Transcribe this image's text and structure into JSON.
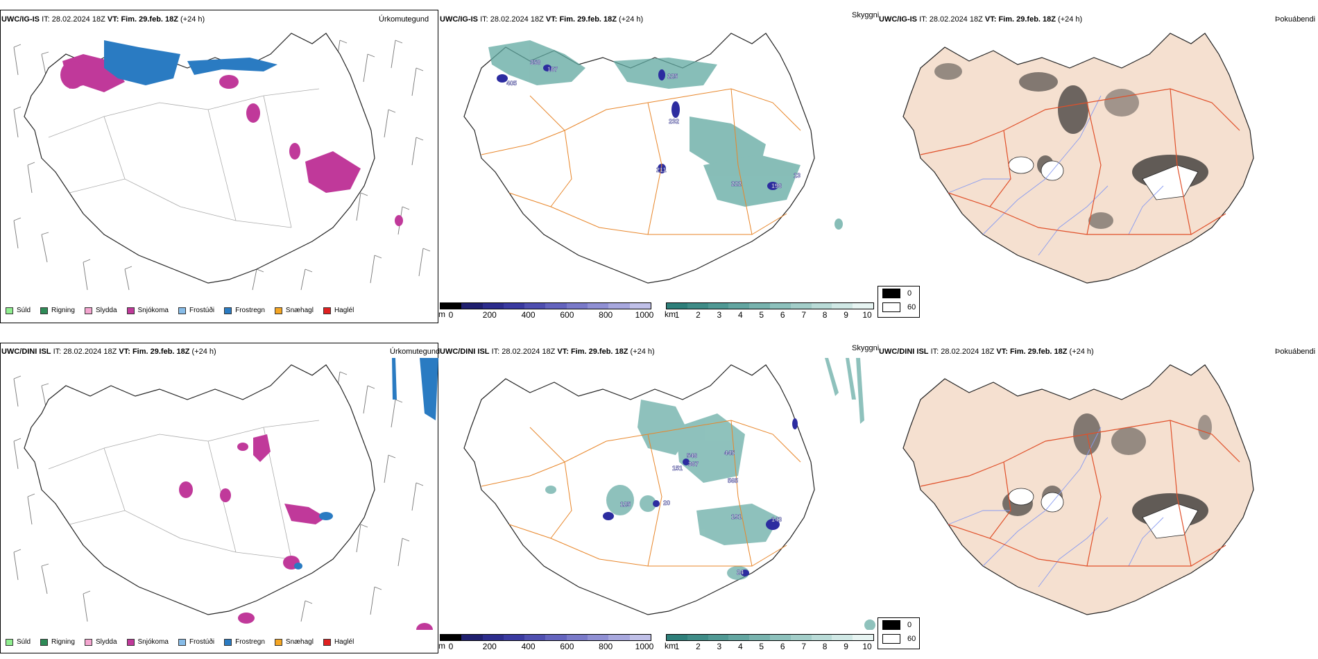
{
  "rows": [
    {
      "id": "top",
      "header": {
        "model": "UWC/IG-IS",
        "it_label": "IT:",
        "it_value": "28.02.2024 18Z",
        "vt_label": "VT:",
        "vt_value": "Fim. 29.feb. 18Z",
        "lead": "(+24 h)"
      },
      "titles": {
        "precip": "Úrkomutegund",
        "cloud": "Skyggni",
        "fog": "Þokuábendi"
      },
      "labels": [
        "358",
        "167",
        "405",
        "225",
        "232",
        "211",
        "222",
        "196",
        "13"
      ]
    },
    {
      "id": "bottom",
      "header": {
        "model": "UWC/DINI ISL",
        "it_label": "IT:",
        "it_value": "28.02.2024 18Z",
        "vt_label": "VT:",
        "vt_value": "Fim. 29.feb. 18Z",
        "lead": "(+24 h)"
      },
      "titles": {
        "precip": "Úrkomutegund",
        "cloud": "Skyggni",
        "fog": "Þokuábendi"
      },
      "labels": [
        "546",
        "367",
        "151",
        "445",
        "565",
        "125",
        "20",
        "191",
        "143",
        "24"
      ]
    }
  ],
  "precip_legend": [
    {
      "label": "Súld",
      "color": "#90ee90"
    },
    {
      "label": "Rigning",
      "color": "#2e8b57"
    },
    {
      "label": "Slydda",
      "color": "#f4a6d0"
    },
    {
      "label": "Snjókoma",
      "color": "#c0399a"
    },
    {
      "label": "Frostúði",
      "color": "#87bce8"
    },
    {
      "label": "Frostregn",
      "color": "#2a7bc2"
    },
    {
      "label": "Snæhagl",
      "color": "#f5a623"
    },
    {
      "label": "Haglél",
      "color": "#e02020"
    }
  ],
  "base_colorbar": {
    "unit": "m",
    "ticks": [
      "0",
      "200",
      "400",
      "600",
      "800",
      "1000"
    ],
    "colors": [
      "#000000",
      "#1f1f6e",
      "#2c2c8c",
      "#3a3aa0",
      "#4f4fb0",
      "#6464be",
      "#7a7ac9",
      "#9090d4",
      "#a8a8de",
      "#c0c0e8"
    ]
  },
  "vis_colorbar": {
    "unit": "km",
    "ticks": [
      "1",
      "2",
      "3",
      "4",
      "5",
      "6",
      "7",
      "8",
      "9",
      "10"
    ],
    "colors": [
      "#2e7f7a",
      "#3f8c87",
      "#509994",
      "#63a6a1",
      "#78b3ae",
      "#8dc1bc",
      "#a3cec9",
      "#b9dbd7",
      "#d0e8e5",
      "#e7f4f2"
    ]
  },
  "fog_legend": [
    {
      "label": "0",
      "color": "#000000"
    },
    {
      "label": "60",
      "color": "#ffffff"
    }
  ],
  "colors": {
    "snow": "#c0399a",
    "freezing_rain": "#2a7bc2",
    "visibility": "#5fa8a0",
    "cloud_base": "#2c2ca0",
    "roads": "#e8862a",
    "fog_land": "#f5e0d0",
    "fog_roads": "#e0502a",
    "fog_rivers": "#8a9cf0"
  }
}
